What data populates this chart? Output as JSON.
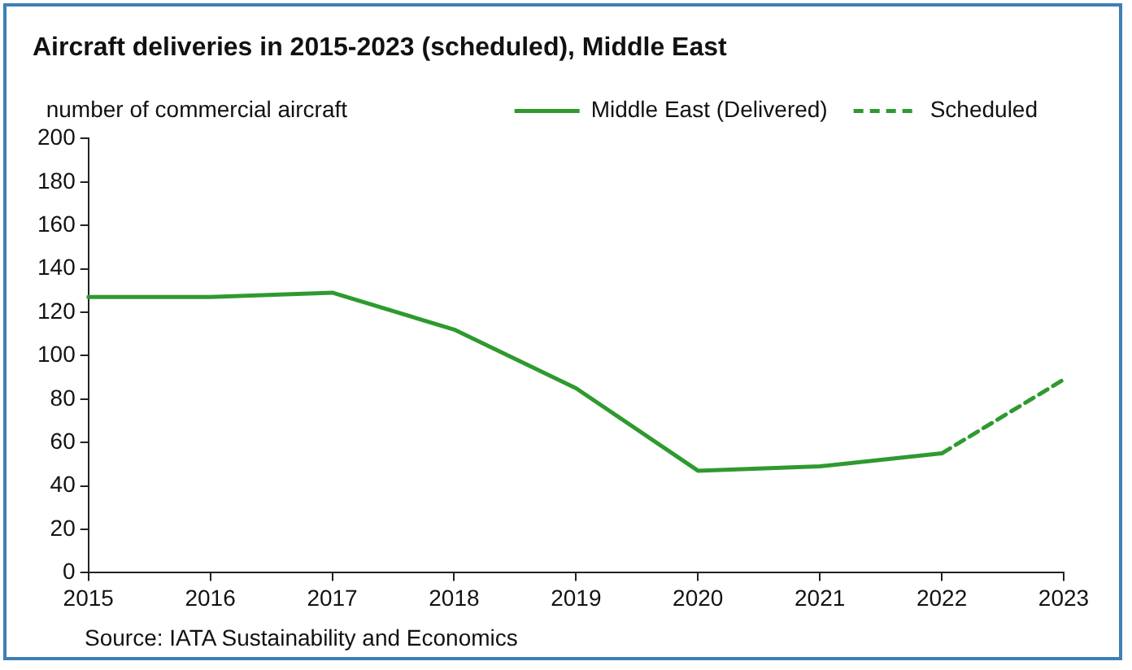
{
  "chart_data": {
    "type": "line",
    "title": "Aircraft deliveries in 2015-2023 (scheduled), Middle East",
    "ylabel": "number of commercial aircraft",
    "categories": [
      "2015",
      "2016",
      "2017",
      "2018",
      "2019",
      "2020",
      "2021",
      "2022",
      "2023"
    ],
    "series": [
      {
        "name": "Middle East (Delivered)",
        "color": "#2e9a2e",
        "line_style": "solid",
        "values": [
          127,
          127,
          129,
          112,
          85,
          47,
          49,
          55,
          null
        ]
      },
      {
        "name": "Scheduled",
        "color": "#2e9a2e",
        "line_style": "dashed",
        "values": [
          null,
          null,
          null,
          null,
          null,
          null,
          null,
          55,
          89
        ]
      }
    ],
    "ylim": [
      0,
      200
    ],
    "yticks": [
      0,
      20,
      40,
      60,
      80,
      100,
      120,
      140,
      160,
      180,
      200
    ],
    "grid": false,
    "legend": "top right",
    "marker": "none",
    "annotations": [
      "Source: IATA Sustainability and Economics"
    ]
  }
}
